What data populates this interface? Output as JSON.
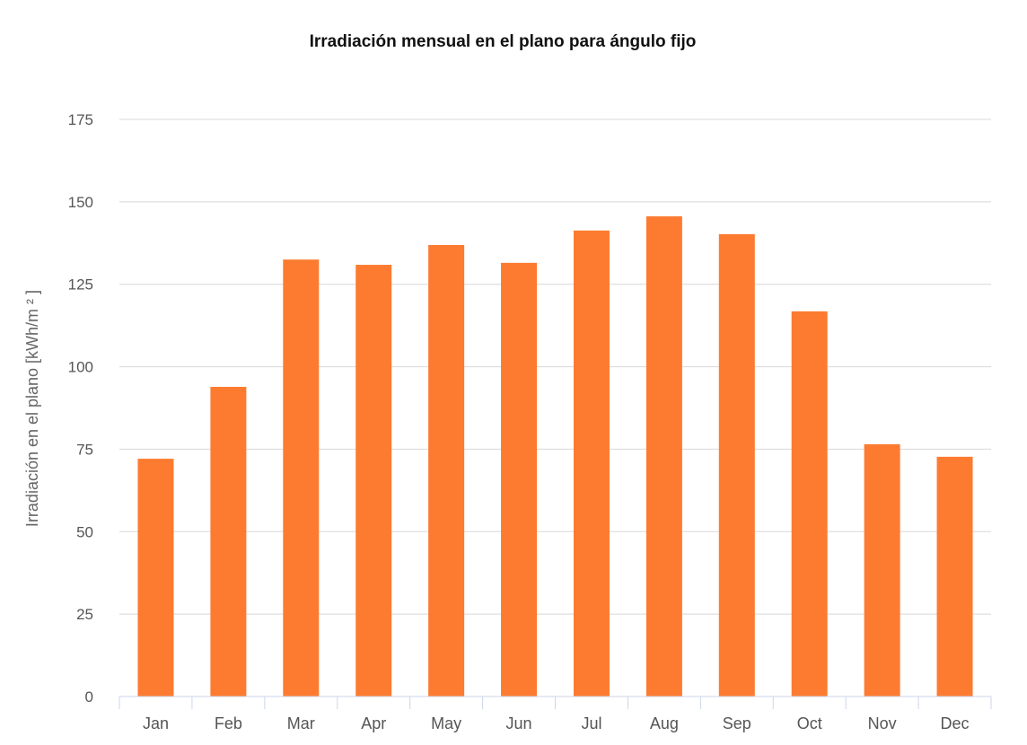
{
  "chart_data": {
    "type": "bar",
    "title": "Irradiación mensual en el plano para ángulo fijo",
    "xlabel": "",
    "ylabel": "Irradiación en el plano [kWh/m ² ]",
    "categories": [
      "Jan",
      "Feb",
      "Mar",
      "Apr",
      "May",
      "Jun",
      "Jul",
      "Aug",
      "Sep",
      "Oct",
      "Nov",
      "Dec"
    ],
    "values": [
      72.1,
      93.9,
      132.5,
      130.9,
      136.9,
      131.5,
      141.3,
      145.6,
      140.2,
      116.8,
      76.5,
      72.7
    ],
    "ylim": [
      0,
      175
    ],
    "yticks": [
      "0",
      "25",
      "50",
      "75",
      "100",
      "125",
      "150",
      "175"
    ],
    "grid": true,
    "bar_color": "#fd7b30"
  }
}
